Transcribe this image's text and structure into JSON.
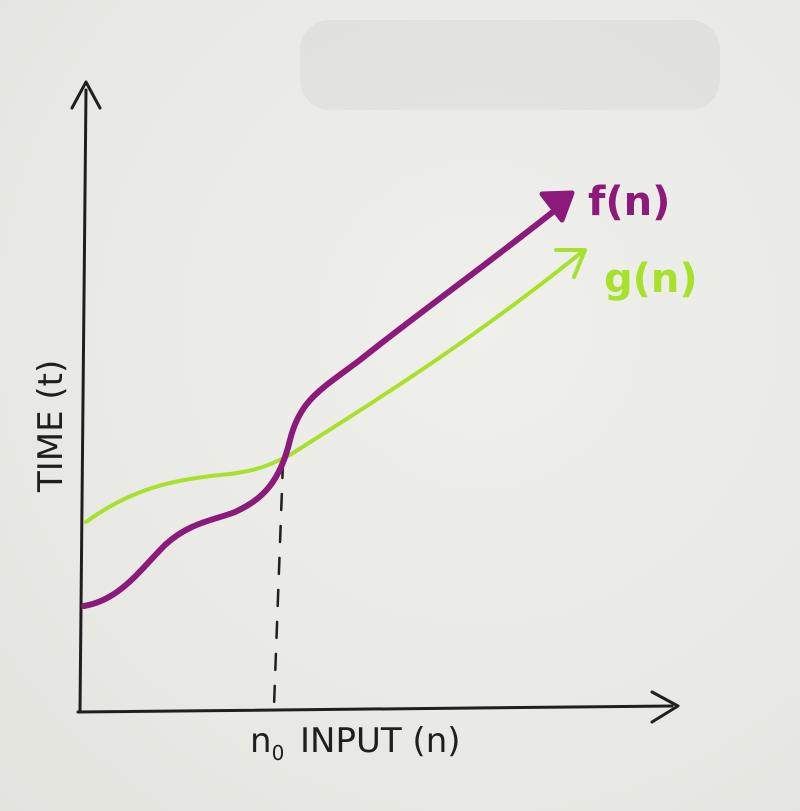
{
  "diagram": {
    "y_axis_label": "TIME (t)",
    "x_axis_label": "INPUT (n)",
    "threshold_subscript_label": "n",
    "threshold_subscript_index": "0",
    "curves": [
      {
        "name": "f(n)",
        "color": "#8b1a7a"
      },
      {
        "name": "g(n)",
        "color": "#a6e22a"
      }
    ],
    "axis_color": "#1f1f1f",
    "paper_color": "#ebebe7"
  }
}
